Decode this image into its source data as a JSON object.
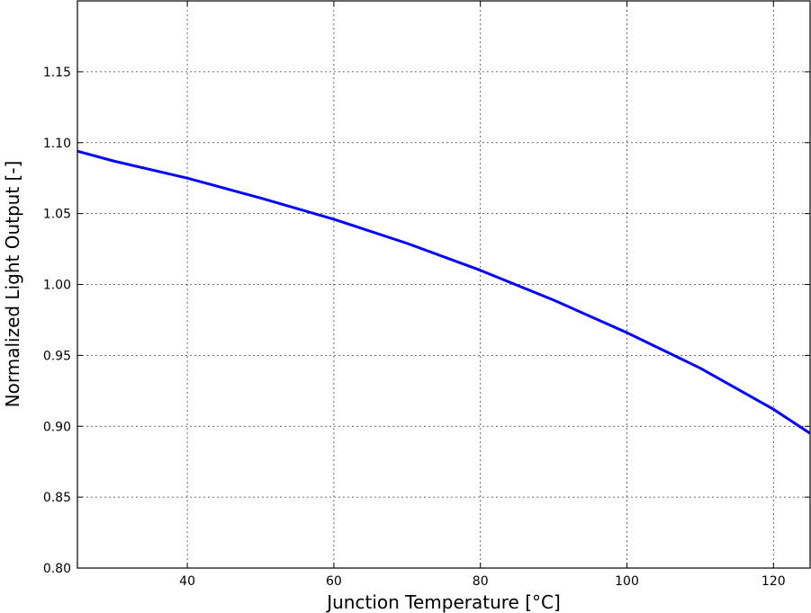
{
  "chart_data": {
    "type": "line",
    "xlabel": "Junction Temperature [°C]",
    "ylabel": "Normalized Light Output [-]",
    "xlim": [
      25,
      125
    ],
    "ylim": [
      0.8,
      1.2
    ],
    "x_ticks": [
      40,
      60,
      80,
      100,
      120
    ],
    "x_tick_labels": [
      "40",
      "60",
      "80",
      "100",
      "120"
    ],
    "y_ticks": [
      0.8,
      0.85,
      0.9,
      0.95,
      1.0,
      1.05,
      1.1,
      1.15
    ],
    "y_tick_labels": [
      "0.80",
      "0.85",
      "0.90",
      "0.95",
      "1.00",
      "1.05",
      "1.10",
      "1.15"
    ],
    "grid": true,
    "line_color": "#0000ff",
    "series": [
      {
        "x": [
          25,
          30,
          40,
          50,
          60,
          70,
          80,
          90,
          100,
          110,
          120,
          125
        ],
        "y": [
          1.094,
          1.087,
          1.075,
          1.061,
          1.046,
          1.029,
          1.01,
          0.989,
          0.966,
          0.941,
          0.912,
          0.895
        ]
      }
    ]
  }
}
